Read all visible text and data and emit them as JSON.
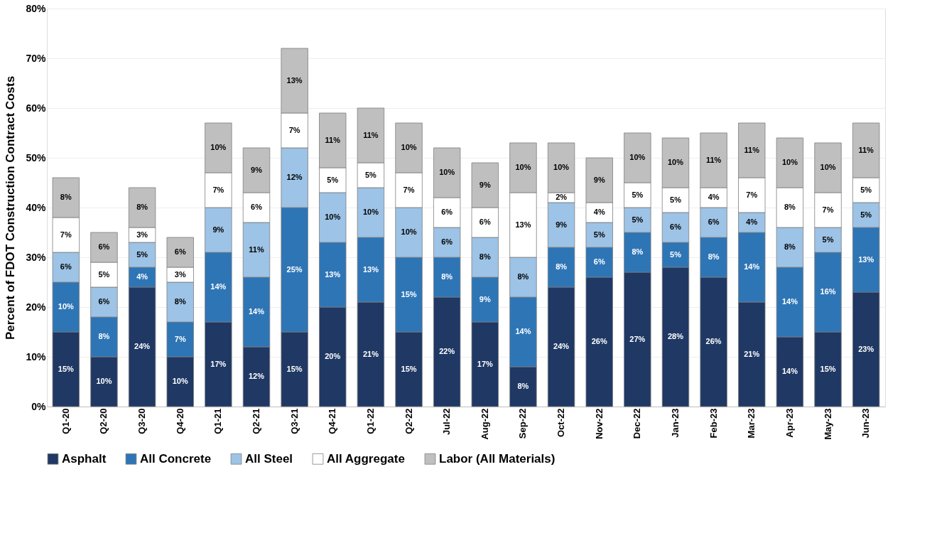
{
  "chart_data": {
    "type": "bar",
    "stacked": true,
    "ylabel": "Percent of FDOT Construction Contract Costs",
    "categories": [
      "Q1-20",
      "Q2-20",
      "Q3-20",
      "Q4-20",
      "Q1-21",
      "Q2-21",
      "Q3-21",
      "Q4-21",
      "Q1-22",
      "Q2-22",
      "Jul-22",
      "Aug-22",
      "Sep-22",
      "Oct-22",
      "Nov-22",
      "Dec-22",
      "Jan-23",
      "Feb-23",
      "Mar-23",
      "Apr-23",
      "May-23",
      "Jun-23"
    ],
    "series": [
      {
        "name": "Asphalt",
        "color": "#1f3864",
        "values": [
          15,
          10,
          24,
          10,
          17,
          12,
          15,
          20,
          21,
          15,
          22,
          17,
          8,
          24,
          26,
          27,
          28,
          26,
          21,
          14,
          15,
          23
        ],
        "value_labels": [
          "15%",
          "10%",
          "24%",
          "10%",
          "17%",
          "12%",
          "15%",
          "20%",
          "21%",
          "15%",
          "22%",
          "17%",
          "8%",
          "24%",
          "26%",
          "27%",
          "28%",
          "26%",
          "21%",
          "14%",
          "15%",
          "23%"
        ]
      },
      {
        "name": "All Concrete",
        "color": "#2e75b6",
        "values": [
          10,
          8,
          4,
          7,
          14,
          14,
          25,
          13,
          13,
          15,
          8,
          9,
          14,
          8,
          6,
          8,
          5,
          8,
          14,
          14,
          16,
          13
        ],
        "value_labels": [
          "10%",
          "8%",
          "4%",
          "7%",
          "14%",
          "14%",
          "25%",
          "13%",
          "13%",
          "15%",
          "8%",
          "9%",
          "14%",
          "8%",
          "6%",
          "8%",
          "5%",
          "8%",
          "14%",
          "14%",
          "16%",
          "13%"
        ]
      },
      {
        "name": "All Steel",
        "color": "#9dc3e6",
        "values": [
          6,
          6,
          5,
          8,
          9,
          11,
          12,
          10,
          10,
          10,
          6,
          8,
          8,
          9,
          5,
          5,
          6,
          6,
          4,
          8,
          5,
          5
        ],
        "value_labels": [
          "6%",
          "6%",
          "5%",
          "8%",
          "9%",
          "11%",
          "12%",
          "10%",
          "10%",
          "10%",
          "6%",
          "8%",
          "8%",
          "9%",
          "5%",
          "5%",
          "6%",
          "6%",
          "4%",
          "8%",
          "5%",
          "5%"
        ]
      },
      {
        "name": "All Aggregate",
        "color": "#ffffff",
        "values": [
          7,
          5,
          3,
          3,
          7,
          6,
          7,
          5,
          5,
          7,
          6,
          6,
          13,
          2,
          4,
          5,
          5,
          4,
          7,
          8,
          7,
          5
        ],
        "value_labels": [
          "7%",
          "5%",
          "3%",
          "3%",
          "7%",
          "6%",
          "7%",
          "5%",
          "5%",
          "7%",
          "6%",
          "6%",
          "13%",
          "2%",
          "4%",
          "5%",
          "5%",
          "4%",
          "7%",
          "8%",
          "7%",
          "5%"
        ]
      },
      {
        "name": "Labor (All Materials)",
        "color": "#bfbfbf",
        "values": [
          8,
          6,
          8,
          6,
          10,
          9,
          13,
          11,
          11,
          10,
          10,
          9,
          10,
          10,
          9,
          10,
          10,
          11,
          11,
          10,
          10,
          11
        ],
        "value_labels": [
          "8%",
          "6%",
          "8%",
          "6%",
          "10%",
          "9%",
          "13%",
          "11%",
          "11%",
          "10%",
          "10%",
          "9%",
          "10%",
          "10%",
          "9%",
          "10%",
          "10%",
          "11%",
          "11%",
          "10%",
          "10%",
          "11%"
        ]
      }
    ],
    "ylim": [
      0,
      80
    ],
    "yticks": [
      {
        "value": 0,
        "label": "0%"
      },
      {
        "value": 10,
        "label": "10%"
      },
      {
        "value": 20,
        "label": "20%"
      },
      {
        "value": 30,
        "label": "30%"
      },
      {
        "value": 40,
        "label": "40%"
      },
      {
        "value": 50,
        "label": "50%"
      },
      {
        "value": 60,
        "label": "60%"
      },
      {
        "value": 70,
        "label": "70%"
      },
      {
        "value": 80,
        "label": "80%"
      }
    ],
    "grid": "y",
    "legend": "bottom"
  }
}
